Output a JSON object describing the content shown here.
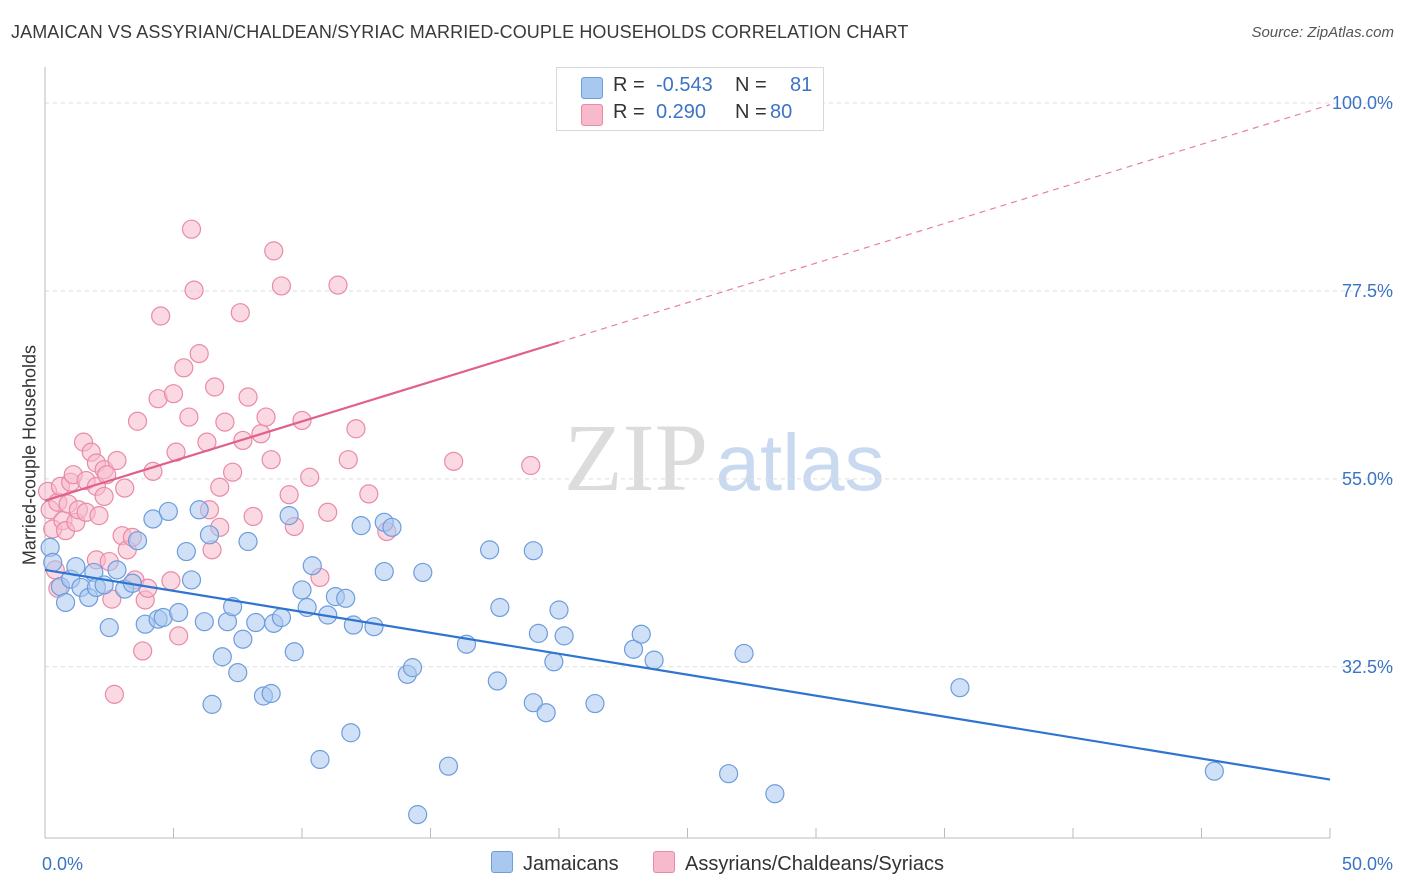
{
  "title": "JAMAICAN VS ASSYRIAN/CHALDEAN/SYRIAC MARRIED-COUPLE HOUSEHOLDS CORRELATION CHART",
  "source": "Source: ZipAtlas.com",
  "watermark": {
    "zip": "ZIP",
    "atlas": "atlas"
  },
  "legend_top": {
    "rows": [
      {
        "r_label": "R =",
        "r_value": "-0.543",
        "n_label": "N =",
        "n_value": "81"
      },
      {
        "r_label": "R =",
        "r_value": "0.290",
        "n_label": "N =",
        "n_value": "80"
      }
    ]
  },
  "colors": {
    "blue_fill": "#a9c8f0",
    "blue_stroke": "#6d9ddc",
    "blue_line": "#2f74d0",
    "pink_fill": "#f7b9cc",
    "pink_stroke": "#e98aa8",
    "pink_line": "#e0608e",
    "tick_text": "#3b74c4",
    "grid": "#dddddd"
  },
  "chart_data": {
    "type": "scatter",
    "title": "JAMAICAN VS ASSYRIAN/CHALDEAN/SYRIAC MARRIED-COUPLE HOUSEHOLDS CORRELATION CHART",
    "xlabel": "",
    "ylabel": "Married-couple Households",
    "xlim": [
      0,
      50
    ],
    "ylim": [
      12,
      103
    ],
    "x_tick_labels": [
      "0.0%",
      "50.0%"
    ],
    "y_ticks": [
      32.5,
      55.0,
      77.5,
      100.0
    ],
    "y_tick_labels": [
      "32.5%",
      "55.0%",
      "77.5%",
      "100.0%"
    ],
    "grid": true,
    "legend_position": "top-center",
    "series": [
      {
        "name": "Jamaicans",
        "r": -0.543,
        "n": 81,
        "trend": {
          "x0": 0,
          "y0": 44.1,
          "x1": 50,
          "y1": 19.0,
          "solid_to": 50
        },
        "points": [
          [
            0.2,
            46.8
          ],
          [
            0.3,
            45.0
          ],
          [
            0.6,
            42.1
          ],
          [
            0.8,
            40.2
          ],
          [
            1.0,
            43.0
          ],
          [
            1.2,
            44.5
          ],
          [
            1.4,
            42.0
          ],
          [
            1.7,
            40.8
          ],
          [
            1.9,
            43.8
          ],
          [
            2.0,
            42.0
          ],
          [
            2.3,
            42.3
          ],
          [
            2.5,
            37.2
          ],
          [
            2.8,
            44.1
          ],
          [
            3.1,
            41.8
          ],
          [
            3.4,
            42.5
          ],
          [
            3.6,
            47.6
          ],
          [
            3.9,
            37.6
          ],
          [
            4.2,
            50.2
          ],
          [
            4.4,
            38.2
          ],
          [
            4.6,
            38.4
          ],
          [
            4.8,
            51.1
          ],
          [
            5.2,
            39.0
          ],
          [
            5.5,
            46.3
          ],
          [
            5.7,
            42.9
          ],
          [
            6.0,
            51.3
          ],
          [
            6.2,
            37.9
          ],
          [
            6.4,
            48.3
          ],
          [
            6.5,
            28.0
          ],
          [
            6.9,
            33.7
          ],
          [
            7.1,
            37.9
          ],
          [
            7.3,
            39.7
          ],
          [
            7.5,
            31.8
          ],
          [
            7.7,
            35.8
          ],
          [
            7.9,
            47.5
          ],
          [
            8.2,
            37.8
          ],
          [
            8.5,
            29.0
          ],
          [
            8.8,
            29.3
          ],
          [
            8.9,
            37.7
          ],
          [
            9.2,
            38.4
          ],
          [
            9.5,
            50.6
          ],
          [
            9.7,
            34.3
          ],
          [
            10.0,
            41.7
          ],
          [
            10.2,
            39.6
          ],
          [
            10.4,
            44.6
          ],
          [
            10.7,
            21.4
          ],
          [
            11.0,
            38.7
          ],
          [
            11.3,
            40.9
          ],
          [
            11.7,
            40.7
          ],
          [
            11.9,
            24.6
          ],
          [
            12.0,
            37.5
          ],
          [
            12.3,
            49.4
          ],
          [
            12.8,
            37.3
          ],
          [
            13.2,
            43.9
          ],
          [
            13.2,
            49.8
          ],
          [
            13.5,
            49.2
          ],
          [
            14.1,
            31.6
          ],
          [
            14.3,
            32.4
          ],
          [
            14.5,
            14.8
          ],
          [
            14.7,
            43.8
          ],
          [
            15.7,
            20.6
          ],
          [
            16.4,
            35.2
          ],
          [
            17.3,
            46.5
          ],
          [
            17.6,
            30.8
          ],
          [
            17.7,
            39.6
          ],
          [
            19.0,
            28.2
          ],
          [
            19.0,
            46.4
          ],
          [
            19.2,
            36.5
          ],
          [
            19.5,
            27.0
          ],
          [
            19.8,
            33.1
          ],
          [
            20.0,
            39.3
          ],
          [
            20.2,
            36.2
          ],
          [
            21.4,
            28.1
          ],
          [
            22.9,
            34.6
          ],
          [
            23.2,
            36.4
          ],
          [
            23.7,
            33.3
          ],
          [
            26.6,
            19.7
          ],
          [
            27.2,
            34.1
          ],
          [
            28.4,
            17.3
          ],
          [
            35.6,
            30.0
          ],
          [
            45.5,
            20.0
          ]
        ]
      },
      {
        "name": "Assyrians/Chaldeans/Syriacs",
        "r": 0.29,
        "n": 80,
        "trend": {
          "x0": 0,
          "y0": 52.4,
          "x1": 50,
          "y1": 99.8,
          "solid_to": 20.0
        },
        "points": [
          [
            0.1,
            53.5
          ],
          [
            0.2,
            51.3
          ],
          [
            0.3,
            49.0
          ],
          [
            0.4,
            44.1
          ],
          [
            0.5,
            41.9
          ],
          [
            0.5,
            52.2
          ],
          [
            0.6,
            54.1
          ],
          [
            0.7,
            50.0
          ],
          [
            0.8,
            48.8
          ],
          [
            0.9,
            52.0
          ],
          [
            1.0,
            54.6
          ],
          [
            1.1,
            55.5
          ],
          [
            1.2,
            49.8
          ],
          [
            1.3,
            51.3
          ],
          [
            1.5,
            59.4
          ],
          [
            1.6,
            54.8
          ],
          [
            1.6,
            51.0
          ],
          [
            1.8,
            58.2
          ],
          [
            2.0,
            56.9
          ],
          [
            2.0,
            54.1
          ],
          [
            2.0,
            45.3
          ],
          [
            2.1,
            50.6
          ],
          [
            2.3,
            56.1
          ],
          [
            2.3,
            52.9
          ],
          [
            2.4,
            55.5
          ],
          [
            2.5,
            45.1
          ],
          [
            2.6,
            40.6
          ],
          [
            2.7,
            29.2
          ],
          [
            2.8,
            57.2
          ],
          [
            3.0,
            48.2
          ],
          [
            3.1,
            53.9
          ],
          [
            3.2,
            46.5
          ],
          [
            3.4,
            48.0
          ],
          [
            3.5,
            42.9
          ],
          [
            3.6,
            61.9
          ],
          [
            3.8,
            34.4
          ],
          [
            3.9,
            40.5
          ],
          [
            4.0,
            41.9
          ],
          [
            4.2,
            55.9
          ],
          [
            4.4,
            64.6
          ],
          [
            4.5,
            74.5
          ],
          [
            4.9,
            42.8
          ],
          [
            5.0,
            65.2
          ],
          [
            5.1,
            58.2
          ],
          [
            5.2,
            36.2
          ],
          [
            5.4,
            68.3
          ],
          [
            5.6,
            62.4
          ],
          [
            5.7,
            84.9
          ],
          [
            5.8,
            77.6
          ],
          [
            6.0,
            70.0
          ],
          [
            6.3,
            59.4
          ],
          [
            6.4,
            51.3
          ],
          [
            6.5,
            46.5
          ],
          [
            6.6,
            66.0
          ],
          [
            6.8,
            49.2
          ],
          [
            6.8,
            54.0
          ],
          [
            7.0,
            61.8
          ],
          [
            7.3,
            55.8
          ],
          [
            7.6,
            74.9
          ],
          [
            7.7,
            59.6
          ],
          [
            7.9,
            64.8
          ],
          [
            8.1,
            50.5
          ],
          [
            8.4,
            60.4
          ],
          [
            8.6,
            62.4
          ],
          [
            8.8,
            57.3
          ],
          [
            8.9,
            82.3
          ],
          [
            9.2,
            78.1
          ],
          [
            9.5,
            53.1
          ],
          [
            9.7,
            49.3
          ],
          [
            10.0,
            62.0
          ],
          [
            10.3,
            55.2
          ],
          [
            10.7,
            43.2
          ],
          [
            11.0,
            51.0
          ],
          [
            11.4,
            78.2
          ],
          [
            11.8,
            57.3
          ],
          [
            12.6,
            53.2
          ],
          [
            13.3,
            48.7
          ],
          [
            15.9,
            57.1
          ],
          [
            18.9,
            56.6
          ],
          [
            12.1,
            61.0
          ]
        ]
      }
    ]
  }
}
